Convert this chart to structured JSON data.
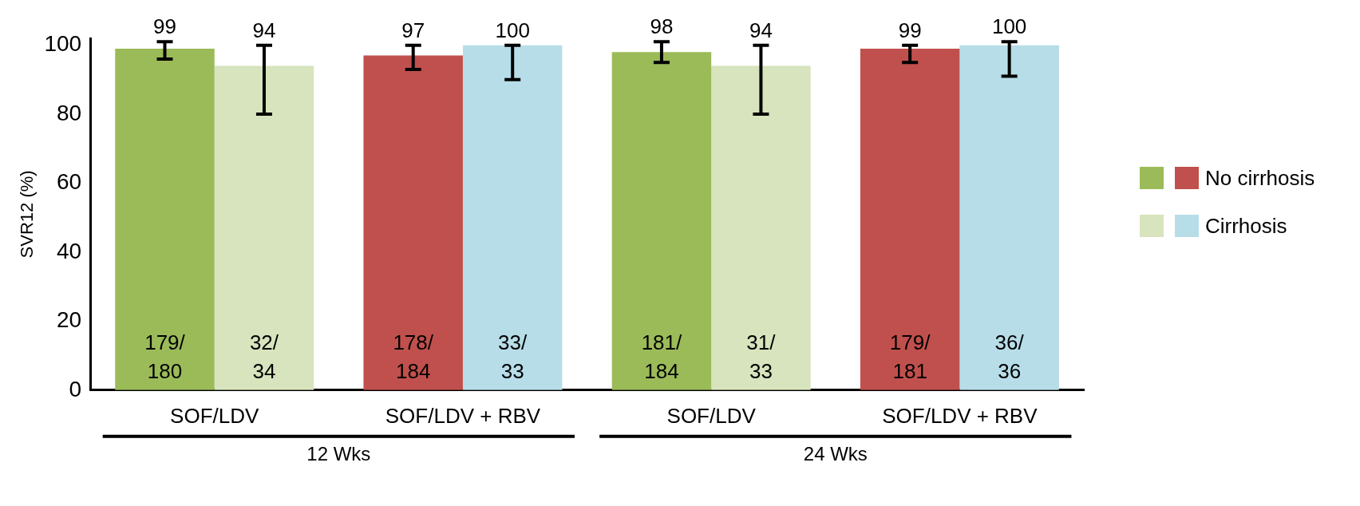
{
  "chart_data": {
    "type": "bar",
    "ylabel": "SVR12 (%)",
    "categories": [
      "SOF/LDV",
      "SOF/LDV + RBV",
      "SOF/LDV",
      "SOF/LDV + RBV"
    ],
    "series": [
      {
        "name": "No cirrhosis",
        "color": "#9bbb59",
        "colors": [
          "#9bbb59",
          "#c0504d",
          "#9bbb59",
          "#c0504d"
        ],
        "values": [
          99,
          97,
          98,
          99
        ],
        "errors": [
          [
            96,
            101
          ],
          [
            93,
            100
          ],
          [
            95,
            101
          ],
          [
            95,
            100
          ]
        ]
      },
      {
        "name": "Cirrhosis",
        "color": "#d7e4bd",
        "colors": [
          "#d7e4bd",
          "#b7dde8",
          "#d7e4bd",
          "#b7dde8"
        ],
        "values": [
          94,
          100,
          94,
          100
        ],
        "errors": [
          [
            80,
            100
          ],
          [
            90,
            100
          ],
          [
            80,
            100
          ],
          [
            91,
            101
          ]
        ]
      }
    ],
    "ylim": [
      0,
      102
    ],
    "yticks": [
      0,
      20,
      40,
      60,
      80,
      100
    ],
    "grid": false,
    "legend": "right",
    "data_labels": true,
    "annotations": [
      "179/180",
      "178/184",
      "181/184",
      "179/181",
      "32/34",
      "33/33",
      "31/33",
      "36/36",
      "12 Wks",
      "24 Wks"
    ]
  }
}
